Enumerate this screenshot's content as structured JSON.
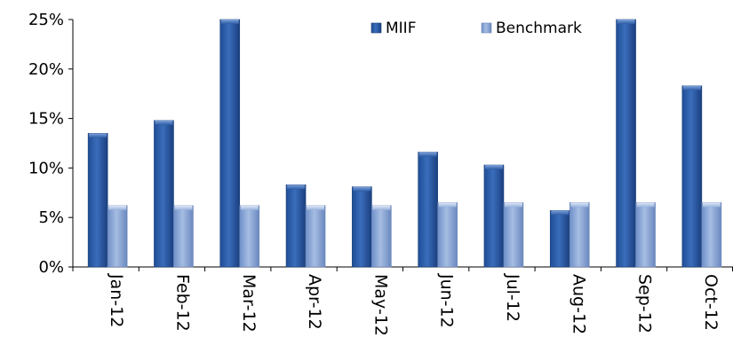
{
  "chart_data": {
    "type": "bar",
    "title": "",
    "xlabel": "",
    "ylabel": "",
    "ylim": [
      0,
      25
    ],
    "y_ticks": [
      "0%",
      "5%",
      "10%",
      "15%",
      "20%",
      "25%"
    ],
    "y_tick_values": [
      0,
      5,
      10,
      15,
      20,
      25
    ],
    "grid": false,
    "legend_position": "top-right",
    "categories": [
      "Jan-12",
      "Feb-12",
      "Mar-12",
      "Apr-12",
      "May-12",
      "Jun-12",
      "Jul-12",
      "Aug-12",
      "Sep-12",
      "Oct-12"
    ],
    "series": [
      {
        "name": "MIIF",
        "color": "#2f5fa7",
        "values": [
          13.5,
          14.8,
          25.0,
          8.3,
          8.1,
          11.6,
          10.3,
          5.7,
          25.0,
          18.3
        ]
      },
      {
        "name": "Benchmark",
        "color": "#8aa7d6",
        "values": [
          6.2,
          6.2,
          6.2,
          6.2,
          6.2,
          6.5,
          6.5,
          6.5,
          6.5,
          6.5
        ]
      }
    ]
  }
}
